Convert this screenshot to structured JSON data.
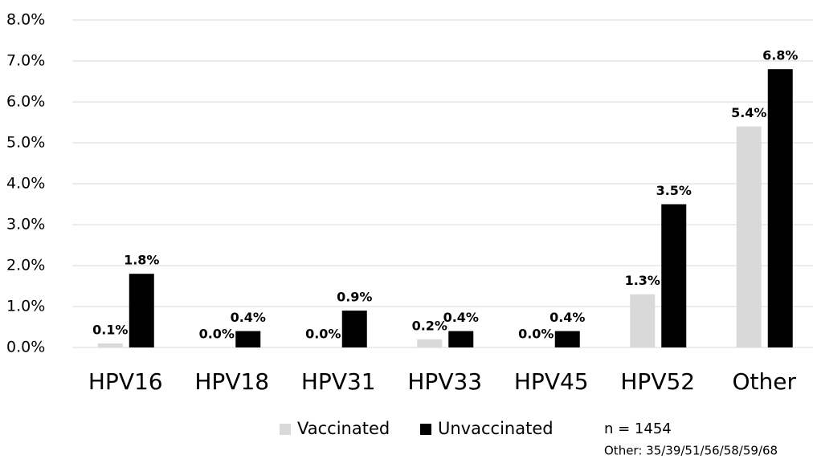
{
  "chart_data": {
    "type": "bar",
    "categories": [
      "HPV16",
      "HPV18",
      "HPV31",
      "HPV33",
      "HPV45",
      "HPV52",
      "Other"
    ],
    "series": [
      {
        "name": "Vaccinated",
        "color": "#d9d9d9",
        "values": [
          0.1,
          0.0,
          0.0,
          0.2,
          0.0,
          1.3,
          5.4
        ],
        "value_labels": [
          "0.1%",
          "0.0%",
          "0.0%",
          "0.2%",
          "0.0%",
          "1.3%",
          "5.4%"
        ]
      },
      {
        "name": "Unvaccinated",
        "color": "#000000",
        "values": [
          1.8,
          0.4,
          0.9,
          0.4,
          0.4,
          3.5,
          6.8
        ],
        "value_labels": [
          "1.8%",
          "0.4%",
          "0.9%",
          "0.4%",
          "0.4%",
          "3.5%",
          "6.8%"
        ]
      }
    ],
    "ylim": [
      0,
      8
    ],
    "yticks": [
      {
        "value": 0,
        "label": "0.0%"
      },
      {
        "value": 1,
        "label": "1.0%"
      },
      {
        "value": 2,
        "label": "2.0%"
      },
      {
        "value": 3,
        "label": "3.0%"
      },
      {
        "value": 4,
        "label": "4.0%"
      },
      {
        "value": 5,
        "label": "5.0%"
      },
      {
        "value": 6,
        "label": "6.0%"
      },
      {
        "value": 7,
        "label": "7.0%"
      },
      {
        "value": 8,
        "label": "8.0%"
      }
    ],
    "grid": true,
    "legend": "bottom",
    "annotations": [
      "n = 1454",
      "Other: 35/39/51/56/58/59/68"
    ]
  }
}
